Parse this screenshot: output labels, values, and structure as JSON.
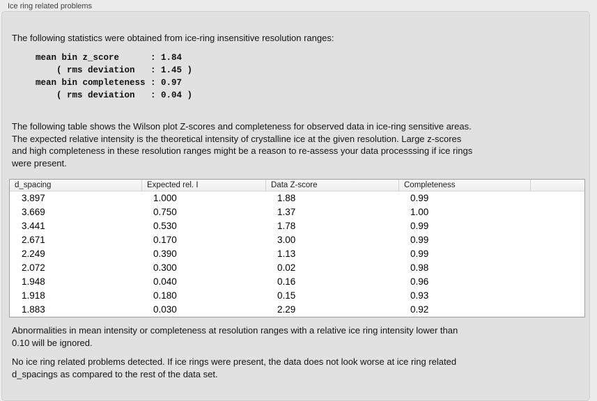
{
  "panel": {
    "title": "Ice ring related problems"
  },
  "intro": "The following statistics were obtained from ice-ring insensitive resolution ranges:",
  "stats_block": "mean bin z_score      : 1.84\n    ( rms deviation   : 1.45 )\nmean bin completeness : 0.97\n    ( rms deviation   : 0.04 )",
  "stats": {
    "mean_bin_z_score": "1.84",
    "z_score_rms_deviation": "1.45",
    "mean_bin_completeness": "0.97",
    "completeness_rms_deviation": "0.04"
  },
  "table_intro": "The following table shows the Wilson plot Z-scores and completeness for observed data in ice-ring sensitive areas.\nThe expected relative intensity is the theoretical intensity of crystalline ice at the given resolution. Large z-scores\nand high completeness in these resolution ranges might be a reason to re-assess your data processsing if ice rings\nwere present.",
  "table": {
    "columns": [
      "d_spacing",
      "Expected rel. I",
      "Data Z-score",
      "Completeness"
    ],
    "rows": [
      [
        "3.897",
        "1.000",
        "1.88",
        "0.99"
      ],
      [
        "3.669",
        "0.750",
        "1.37",
        "1.00"
      ],
      [
        "3.441",
        "0.530",
        "1.78",
        "0.99"
      ],
      [
        "2.671",
        "0.170",
        "3.00",
        "0.99"
      ],
      [
        "2.249",
        "0.390",
        "1.13",
        "0.99"
      ],
      [
        "2.072",
        "0.300",
        "0.02",
        "0.98"
      ],
      [
        "1.948",
        "0.040",
        "0.16",
        "0.96"
      ],
      [
        "1.918",
        "0.180",
        "0.15",
        "0.93"
      ],
      [
        "1.883",
        "0.030",
        "2.29",
        "0.92"
      ]
    ]
  },
  "footnote": "Abnormalities in mean intensity or completeness at resolution ranges with a relative ice ring intensity lower than\n0.10 will be ignored.",
  "conclusion": "No ice ring related problems detected. If ice rings were present, the data does not look worse at ice ring related\nd_spacings as compared to the rest of the data set.",
  "colors": {
    "panel_background": "#ececec",
    "groupbox_background": "#e1e1e1",
    "table_background": "#ffffff",
    "table_border": "#9e9e9e",
    "text": "#141414"
  }
}
